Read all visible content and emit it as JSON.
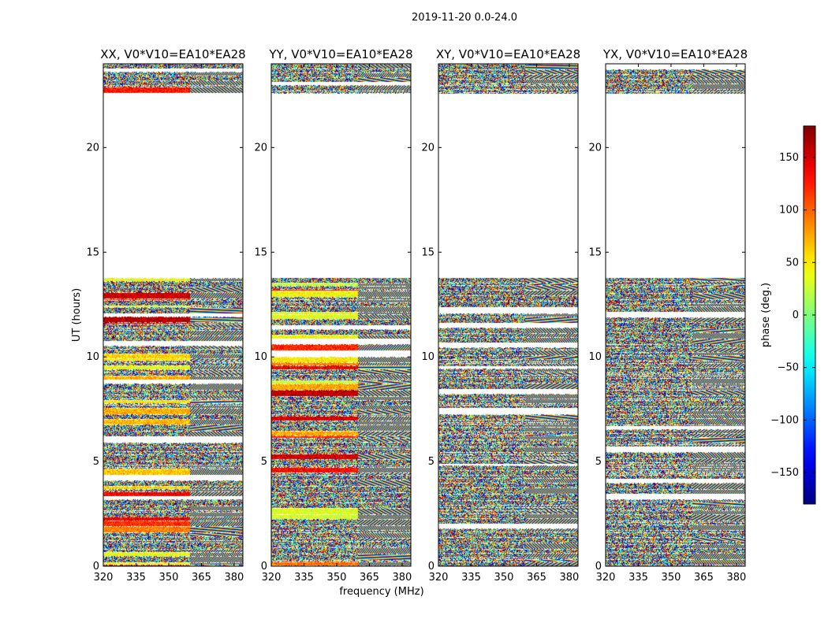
{
  "chart_data": {
    "type": "heatmap",
    "suptitle": "2019-11-20 0.0-24.0",
    "xlabel": "frequency (MHz)",
    "ylabel": "UT (hours)",
    "xlim": [
      320,
      384
    ],
    "ylim": [
      0,
      24
    ],
    "xticks": [
      320,
      335,
      350,
      365,
      380
    ],
    "yticks": [
      0,
      5,
      10,
      15,
      20
    ],
    "colormap": "jet",
    "colorbar": {
      "label": "phase (deg.)",
      "range": [
        -180,
        180
      ],
      "ticks": [
        -150,
        -100,
        -50,
        0,
        50,
        100,
        150
      ],
      "tick_labels": [
        "−150",
        "−100",
        "−50",
        "0",
        "50",
        "100",
        "150"
      ]
    },
    "data_bands_hours": [
      [
        0.0,
        13.8
      ],
      [
        22.6,
        24.0
      ]
    ],
    "no_data_hours": [
      [
        13.8,
        22.6
      ]
    ],
    "series": [
      {
        "name": "XX, V0*V10=EA10*EA28"
      },
      {
        "name": "YY, V0*V10=EA10*EA28"
      },
      {
        "name": "XY, V0*V10=EA10*EA28"
      },
      {
        "name": "YX, V0*V10=EA10*EA28"
      }
    ]
  }
}
